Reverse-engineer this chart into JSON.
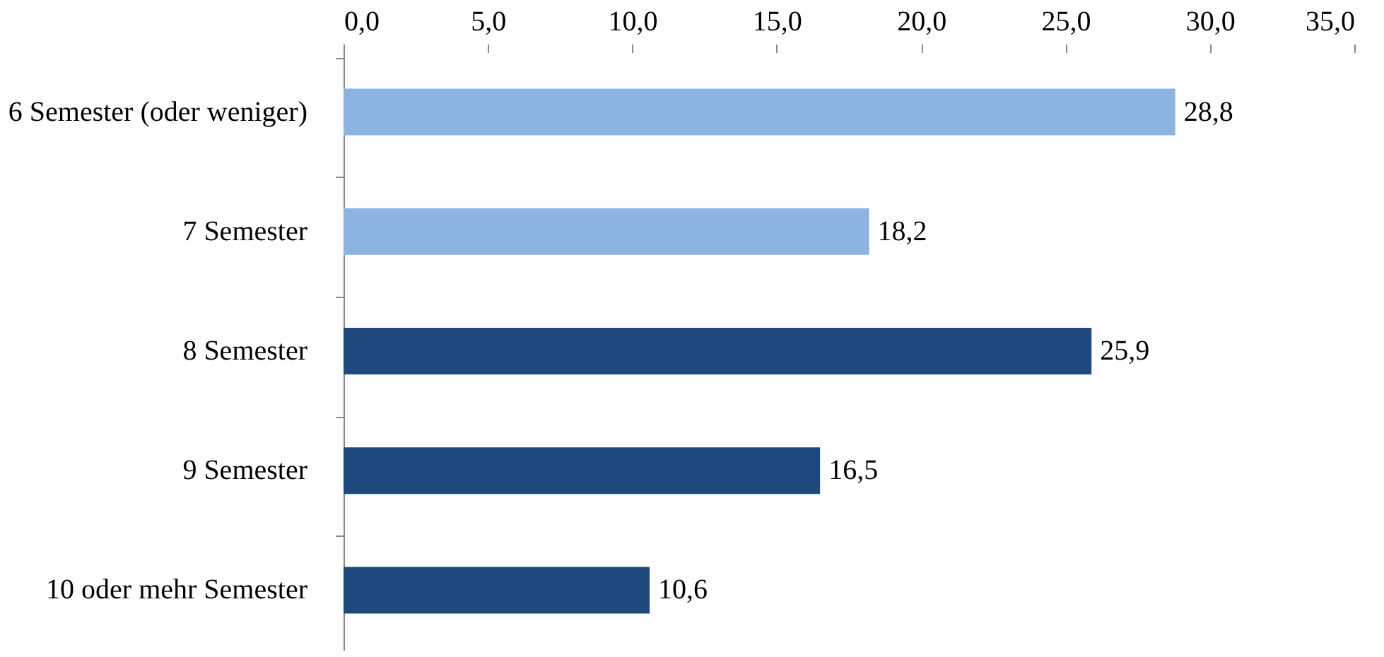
{
  "chart_data": {
    "type": "bar",
    "orientation": "horizontal",
    "categories": [
      "6 Semester (oder weniger)",
      "7 Semester",
      "8 Semester",
      "9 Semester",
      "10 oder mehr Semester"
    ],
    "values": [
      28.8,
      18.2,
      25.9,
      16.5,
      10.6
    ],
    "colors": [
      "#8db3e2",
      "#8db3e2",
      "#1f497d",
      "#1f497d",
      "#1f497d"
    ],
    "value_labels": [
      "28,8",
      "18,2",
      "25,9",
      "16,5",
      "10,6"
    ],
    "xlim": [
      0,
      35
    ],
    "xticks": [
      {
        "value": 0,
        "label": "0,0"
      },
      {
        "value": 5,
        "label": "5,0"
      },
      {
        "value": 10,
        "label": "10,0"
      },
      {
        "value": 15,
        "label": "15,0"
      },
      {
        "value": 20,
        "label": "20,0"
      },
      {
        "value": 25,
        "label": "25,0"
      },
      {
        "value": 30,
        "label": "30,0"
      },
      {
        "value": 35,
        "label": "35,0"
      }
    ],
    "grid": false
  }
}
